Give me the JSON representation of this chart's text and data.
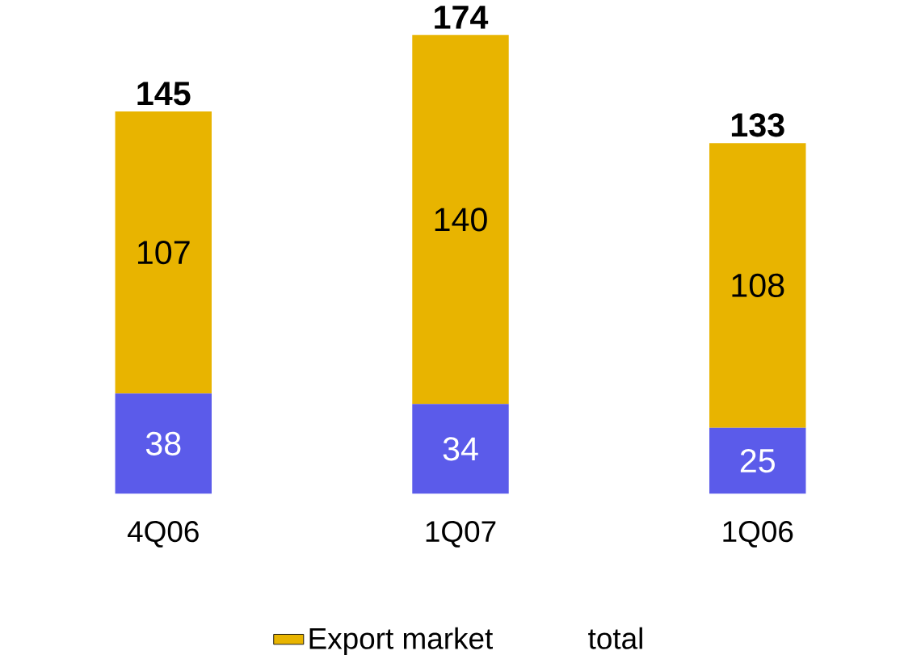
{
  "chart_data": {
    "type": "bar",
    "stacked": true,
    "data_labels": true,
    "categories": [
      "4Q06",
      "1Q07",
      "1Q06"
    ],
    "series": [
      {
        "color": "#5b5bea",
        "values": [
          38,
          34,
          25
        ]
      },
      {
        "name": "Export market",
        "color": "#e8b400",
        "values": [
          107,
          140,
          108
        ]
      }
    ],
    "totals": [
      "145",
      "174",
      "133"
    ],
    "legend": "bottom",
    "annotations": [
      "total"
    ]
  }
}
